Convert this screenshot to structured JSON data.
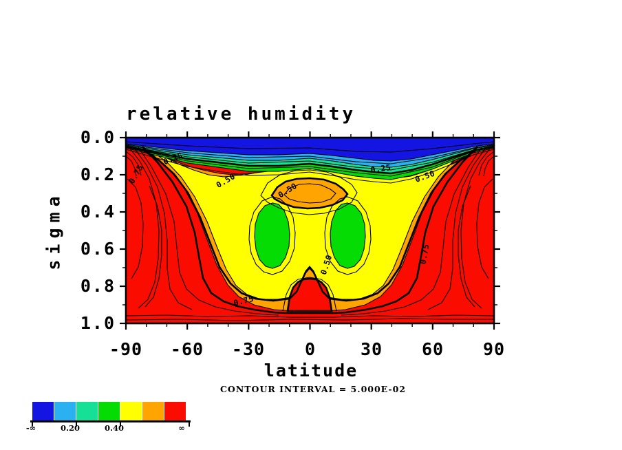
{
  "title": "relative humidity",
  "axes": {
    "y_label": "sigma",
    "x_label": "latitude",
    "y_ticks": [
      "0.0",
      "0.2",
      "0.4",
      "0.6",
      "0.8",
      "1.0"
    ],
    "x_ticks": [
      "-90",
      "-60",
      "-30",
      "0",
      "30",
      "60",
      "90"
    ]
  },
  "caption": "CONTOUR INTERVAL = 5.000E-02",
  "colorbar": {
    "colors": [
      "#1515E3",
      "#2BB1F2",
      "#16E095",
      "#04DC04",
      "#FFFF00",
      "#FFA400",
      "#FA0C00"
    ],
    "labels": [
      "-∞",
      "0.20",
      "0.40",
      "∞"
    ]
  },
  "contour_labels": [
    {
      "text": "0.25"
    },
    {
      "text": "0.25"
    },
    {
      "text": "0.50"
    },
    {
      "text": "0.50"
    },
    {
      "text": "0.50"
    },
    {
      "text": "0.50"
    },
    {
      "text": "0.75"
    },
    {
      "text": "0.75"
    },
    {
      "text": "0.75"
    }
  ],
  "palette": {
    "blue": "#1515E3",
    "cyan": "#2BB1F2",
    "teal": "#16E095",
    "green": "#04DC04",
    "yellow": "#FFFF00",
    "orange": "#FFA400",
    "red": "#FA0C00",
    "line": "#000000",
    "background": "#FFFFFF"
  },
  "chart_data": {
    "type": "contour",
    "title": "relative humidity",
    "xlabel": "latitude",
    "ylabel": "sigma",
    "xlim": [
      -90,
      90
    ],
    "ylim": [
      0.0,
      1.0
    ],
    "y_axis_inverted": true,
    "x_major_ticks": [
      -90,
      -60,
      -30,
      0,
      30,
      60,
      90
    ],
    "y_major_ticks": [
      0.0,
      0.2,
      0.4,
      0.6,
      0.8,
      1.0
    ],
    "contour_interval": 0.05,
    "labeled_levels": [
      0.25,
      0.5,
      0.75
    ],
    "fill_bands": [
      {
        "color": "#1515E3",
        "range_label": "< 0.10"
      },
      {
        "color": "#2BB1F2",
        "range_label": "0.10–0.20"
      },
      {
        "color": "#16E095",
        "range_label": "0.20–0.30"
      },
      {
        "color": "#04DC04",
        "range_label": "0.30–0.40"
      },
      {
        "color": "#FFFF00",
        "range_label": "0.40–0.50"
      },
      {
        "color": "#FFA400",
        "range_label": "0.50–0.60"
      },
      {
        "color": "#FA0C00",
        "range_label": "> 0.60"
      }
    ],
    "colorbar_labels_shown": [
      "-∞",
      "0.20",
      "0.40",
      "∞"
    ],
    "grid_estimated": {
      "lat": [
        -90,
        -60,
        -30,
        0,
        30,
        60,
        90
      ],
      "sigma": [
        0.0,
        0.1,
        0.2,
        0.3,
        0.4,
        0.5,
        0.6,
        0.7,
        0.8,
        0.9,
        1.0
      ],
      "relative_humidity": [
        [
          0.02,
          0.02,
          0.02,
          0.02,
          0.02,
          0.02,
          0.02
        ],
        [
          0.6,
          0.28,
          0.1,
          0.07,
          0.05,
          0.22,
          0.6
        ],
        [
          0.78,
          0.52,
          0.45,
          0.48,
          0.38,
          0.45,
          0.8
        ],
        [
          0.85,
          0.62,
          0.47,
          0.55,
          0.45,
          0.62,
          0.85
        ],
        [
          0.88,
          0.68,
          0.4,
          0.47,
          0.38,
          0.7,
          0.88
        ],
        [
          0.9,
          0.72,
          0.37,
          0.45,
          0.36,
          0.75,
          0.9
        ],
        [
          0.92,
          0.75,
          0.4,
          0.48,
          0.4,
          0.78,
          0.9
        ],
        [
          0.92,
          0.78,
          0.5,
          0.55,
          0.5,
          0.8,
          0.9
        ],
        [
          0.9,
          0.8,
          0.58,
          0.68,
          0.58,
          0.82,
          0.88
        ],
        [
          0.88,
          0.82,
          0.68,
          0.78,
          0.68,
          0.82,
          0.86
        ],
        [
          0.85,
          0.83,
          0.8,
          0.82,
          0.8,
          0.82,
          0.84
        ]
      ]
    },
    "features": [
      "dry blue layer at top (sigma < ~0.1) across all latitudes",
      "compressed contour fans at both poles",
      "moist red regions at high latitudes and near surface",
      "dry green cells near ±20 latitude, sigma 0.35–0.70",
      "moist orange cell at equator near sigma 0.25",
      "moist red tongue rising at equator near surface"
    ]
  }
}
